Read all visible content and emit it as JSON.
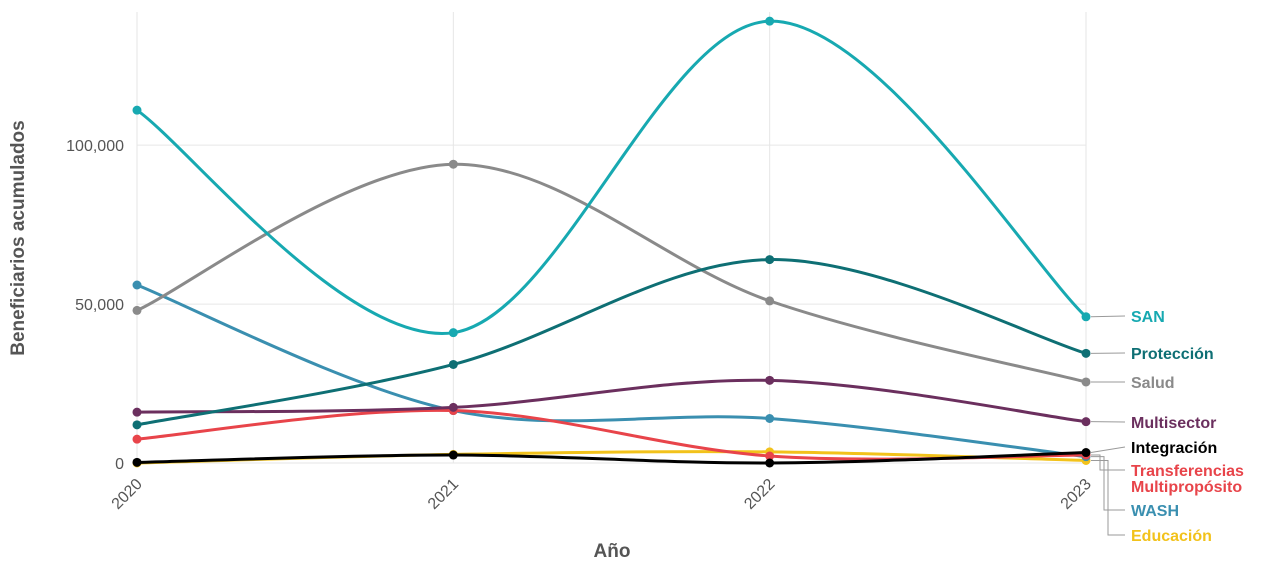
{
  "chart_data": {
    "type": "line",
    "title": "",
    "xlabel": "Año",
    "ylabel": "Beneficiarios acumulados",
    "x": [
      "2020",
      "2021",
      "2022",
      "2023"
    ],
    "ylim": [
      0,
      140000
    ],
    "yticks": [
      0,
      50000,
      100000
    ],
    "ytick_labels": [
      "0",
      "50,000",
      "100,000"
    ],
    "grid": true,
    "legend": "none",
    "series": [
      {
        "name": "SAN",
        "label_lines": [
          "SAN"
        ],
        "color": "#17a9b1",
        "values": [
          111000,
          41000,
          139000,
          46000
        ]
      },
      {
        "name": "Protección",
        "label_lines": [
          "Protección"
        ],
        "color": "#0e6f74",
        "values": [
          12000,
          31000,
          64000,
          34500
        ]
      },
      {
        "name": "Salud",
        "label_lines": [
          "Salud"
        ],
        "color": "#8a8a8a",
        "values": [
          48000,
          94000,
          51000,
          25500
        ]
      },
      {
        "name": "Multisector",
        "label_lines": [
          "Multisector"
        ],
        "color": "#6b2f5e",
        "values": [
          16000,
          17500,
          26000,
          13000
        ]
      },
      {
        "name": "Integración",
        "label_lines": [
          "Integración"
        ],
        "color": "#000000",
        "values": [
          200,
          2500,
          0,
          3300
        ]
      },
      {
        "name": "Transferencias Multipropósito",
        "label_lines": [
          "Transferencias",
          "Multipropósito"
        ],
        "color": "#e8444a",
        "values": [
          7500,
          16500,
          2200,
          2500
        ]
      },
      {
        "name": "WASH",
        "label_lines": [
          "WASH"
        ],
        "color": "#3a8fb0",
        "values": [
          56000,
          16500,
          14000,
          2000
        ]
      },
      {
        "name": "Educación",
        "label_lines": [
          "Educación"
        ],
        "color": "#f2c21b",
        "values": [
          0,
          2700,
          3500,
          800
        ]
      }
    ]
  }
}
